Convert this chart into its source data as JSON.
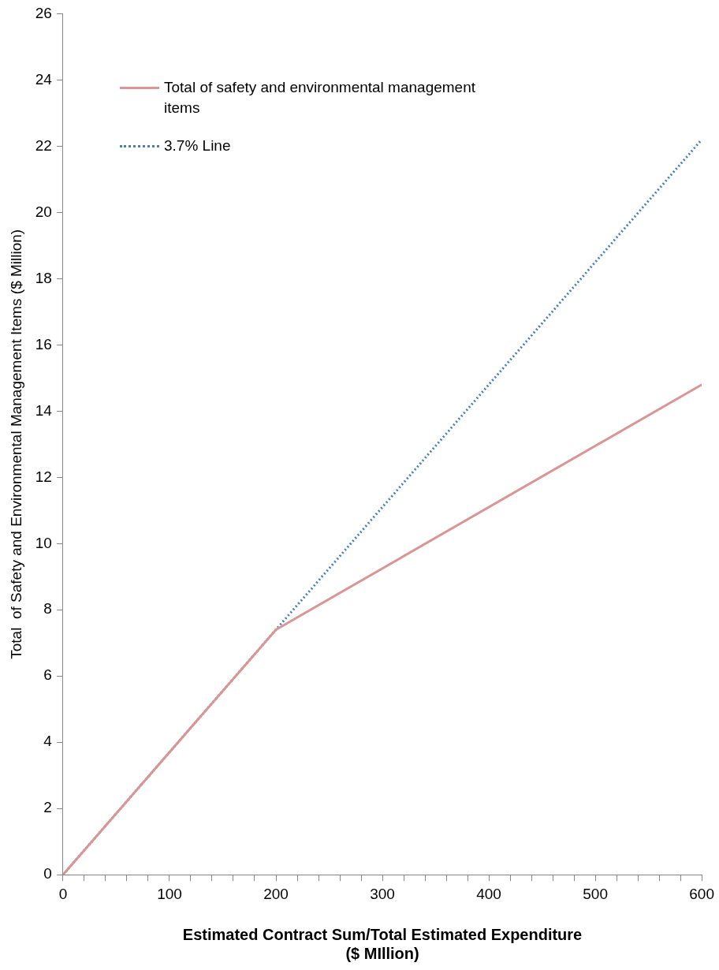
{
  "chart_data": {
    "type": "line",
    "xlabel": "Estimated Contract Sum/Total Estimated Expenditure\n($ MIllion)",
    "ylabel": "Total  of Safety and Environmental Management Items ($ Million)",
    "xlim": [
      0,
      600
    ],
    "xticks": [
      0,
      {
        "value": 20,
        "label": null
      },
      {
        "value": 40,
        "label": null
      },
      {
        "value": 60,
        "label": null
      },
      {
        "value": 80,
        "label": null
      },
      100,
      {
        "value": 120,
        "label": null
      },
      {
        "value": 140,
        "label": null
      },
      {
        "value": 160,
        "label": null
      },
      {
        "value": 180,
        "label": null
      },
      200,
      {
        "value": 220,
        "label": null
      },
      {
        "value": 240,
        "label": null
      },
      {
        "value": 260,
        "label": null
      },
      {
        "value": 280,
        "label": null
      },
      300,
      {
        "value": 320,
        "label": null
      },
      {
        "value": 340,
        "label": null
      },
      {
        "value": 360,
        "label": null
      },
      {
        "value": 380,
        "label": null
      },
      400,
      {
        "value": 420,
        "label": null
      },
      {
        "value": 440,
        "label": null
      },
      {
        "value": 460,
        "label": null
      },
      {
        "value": 480,
        "label": null
      },
      500,
      {
        "value": 520,
        "label": null
      },
      {
        "value": 540,
        "label": null
      },
      {
        "value": 560,
        "label": null
      },
      {
        "value": 580,
        "label": null
      },
      600
    ],
    "ylim": [
      0,
      26
    ],
    "yticks": [
      0,
      2,
      4,
      6,
      8,
      10,
      12,
      14,
      16,
      18,
      20,
      22,
      24,
      26
    ],
    "grid": false,
    "legend": "top left",
    "marker": "none",
    "series": [
      {
        "name": "Total of safety and environmental management items",
        "color": "#d99694",
        "line_style": "solid",
        "x": [
          0,
          200,
          600
        ],
        "values": [
          0,
          7.4,
          14.8
        ]
      },
      {
        "name": "3.7% Line",
        "color": "#4a7ebb",
        "line_style": "dotted",
        "x": [
          0,
          600
        ],
        "values": [
          0,
          22.2
        ]
      }
    ]
  }
}
